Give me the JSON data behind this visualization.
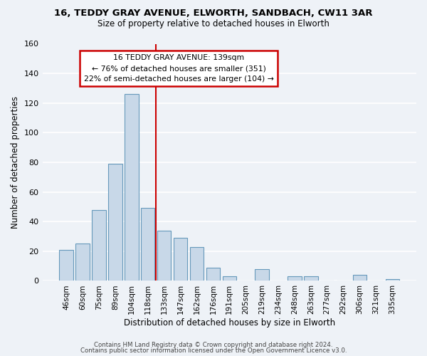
{
  "title": "16, TEDDY GRAY AVENUE, ELWORTH, SANDBACH, CW11 3AR",
  "subtitle": "Size of property relative to detached houses in Elworth",
  "xlabel": "Distribution of detached houses by size in Elworth",
  "ylabel": "Number of detached properties",
  "bar_labels": [
    "46sqm",
    "60sqm",
    "75sqm",
    "89sqm",
    "104sqm",
    "118sqm",
    "133sqm",
    "147sqm",
    "162sqm",
    "176sqm",
    "191sqm",
    "205sqm",
    "219sqm",
    "234sqm",
    "248sqm",
    "263sqm",
    "277sqm",
    "292sqm",
    "306sqm",
    "321sqm",
    "335sqm"
  ],
  "bar_values": [
    21,
    25,
    48,
    79,
    126,
    49,
    34,
    29,
    23,
    9,
    3,
    0,
    8,
    0,
    3,
    3,
    0,
    0,
    4,
    0,
    1
  ],
  "bar_color": "#c8d8e8",
  "bar_edge_color": "#6699bb",
  "ylim": [
    0,
    160
  ],
  "yticks": [
    0,
    20,
    40,
    60,
    80,
    100,
    120,
    140,
    160
  ],
  "vline_x_index": 6,
  "vline_color": "#cc0000",
  "annotation_title": "16 TEDDY GRAY AVENUE: 139sqm",
  "annotation_line1": "← 76% of detached houses are smaller (351)",
  "annotation_line2": "22% of semi-detached houses are larger (104) →",
  "annotation_box_color": "#ffffff",
  "annotation_box_edge": "#cc0000",
  "footer1": "Contains HM Land Registry data © Crown copyright and database right 2024.",
  "footer2": "Contains public sector information licensed under the Open Government Licence v3.0.",
  "bg_color": "#eef2f7",
  "grid_color": "#ffffff"
}
